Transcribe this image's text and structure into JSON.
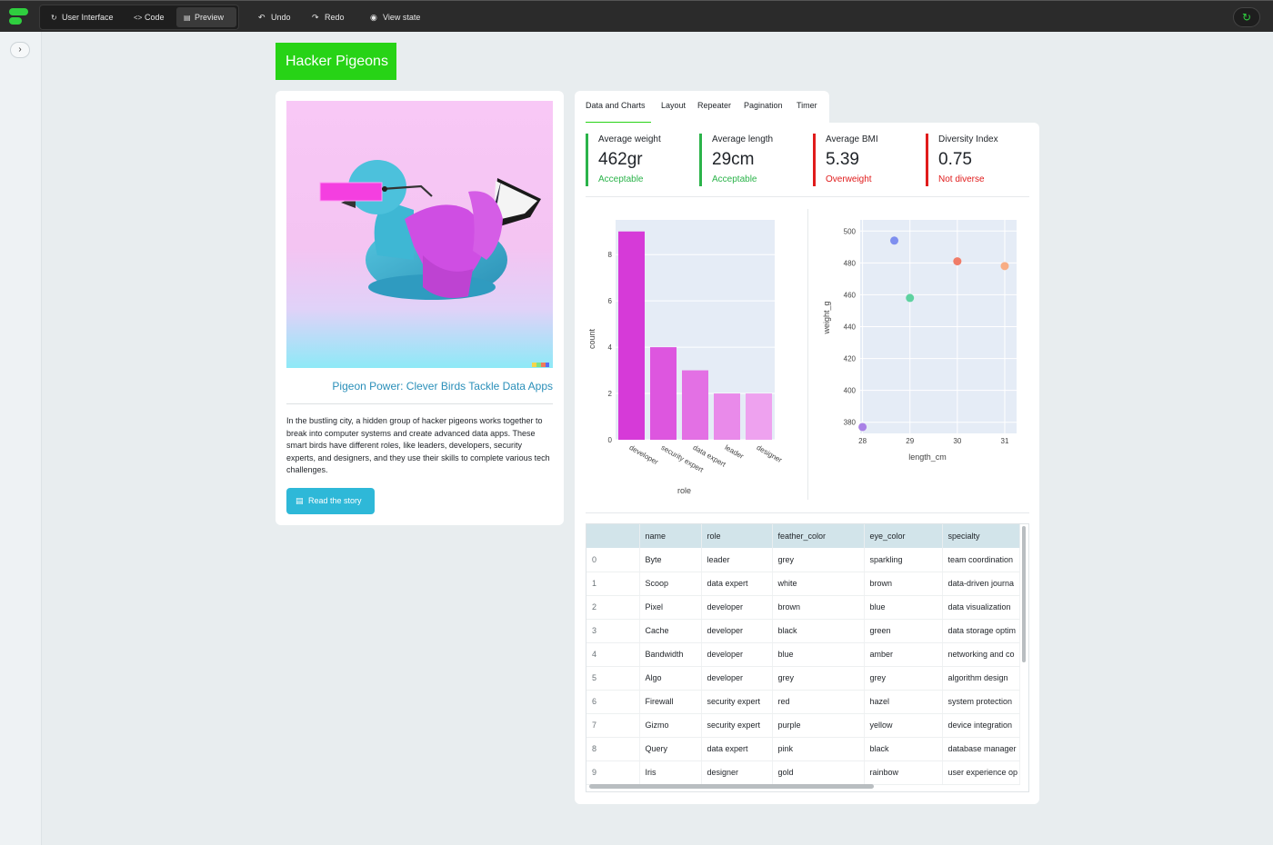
{
  "toolbar": {
    "modes": [
      {
        "label": "User Interface",
        "icon": "reload-icon"
      },
      {
        "label": "Code",
        "icon": "code-icon"
      },
      {
        "label": "Preview",
        "icon": "preview-icon"
      }
    ],
    "undo_label": "Undo",
    "redo_label": "Redo",
    "view_state_label": "View state"
  },
  "app_title": "Hacker Pigeons",
  "story": {
    "title": "Pigeon Power: Clever Birds Tackle Data Apps",
    "text": "In the bustling city, a hidden group of hacker pigeons works together to break into computer systems and create advanced data apps. These smart birds have different roles, like leaders, developers, security experts, and designers, and they use their skills to complete various tech challenges.",
    "button_label": "Read the story"
  },
  "tabs": [
    "Data and Charts",
    "Layout",
    "Repeater",
    "Pagination",
    "Timer"
  ],
  "kpis": [
    {
      "label": "Average weight",
      "value": "462gr",
      "status": "Acceptable",
      "color": "#2bb34a"
    },
    {
      "label": "Average length",
      "value": "29cm",
      "status": "Acceptable",
      "color": "#2bb34a"
    },
    {
      "label": "Average BMI",
      "value": "5.39",
      "status": "Overweight",
      "color": "#e01b1b"
    },
    {
      "label": "Diversity Index",
      "value": "0.75",
      "status": "Not diverse",
      "color": "#e01b1b"
    }
  ],
  "chart_data": [
    {
      "type": "bar",
      "categories": [
        "developer",
        "security expert",
        "data expert",
        "leader",
        "designer"
      ],
      "values": [
        9,
        4,
        3,
        2,
        2
      ],
      "colors": [
        "#d63ad8",
        "#dd56df",
        "#e370e4",
        "#e98aea",
        "#eea2ef"
      ],
      "xlabel": "role",
      "ylabel": "count",
      "yticks": [
        0,
        2,
        4,
        6,
        8
      ],
      "ylim": [
        0,
        9.5
      ]
    },
    {
      "type": "scatter",
      "points": [
        {
          "x": 28,
          "y": 377,
          "color": "#a981e6"
        },
        {
          "x": 28.67,
          "y": 494,
          "color": "#7e8fef"
        },
        {
          "x": 29,
          "y": 458,
          "color": "#5ed2a0"
        },
        {
          "x": 30,
          "y": 481,
          "color": "#f07c68"
        },
        {
          "x": 31,
          "y": 478,
          "color": "#f8ad84"
        }
      ],
      "xlabel": "length_cm",
      "ylabel": "weight_g",
      "xticks": [
        28,
        29,
        30,
        31
      ],
      "yticks": [
        380,
        400,
        420,
        440,
        460,
        480,
        500
      ],
      "xlim": [
        27.95,
        31.25
      ],
      "ylim": [
        373,
        507
      ]
    }
  ],
  "table": {
    "columns": [
      "",
      "name",
      "role",
      "feather_color",
      "eye_color",
      "specialty"
    ],
    "rows": [
      [
        "0",
        "Byte",
        "leader",
        "grey",
        "sparkling",
        "team coordination"
      ],
      [
        "1",
        "Scoop",
        "data expert",
        "white",
        "brown",
        "data-driven journa"
      ],
      [
        "2",
        "Pixel",
        "developer",
        "brown",
        "blue",
        "data visualization"
      ],
      [
        "3",
        "Cache",
        "developer",
        "black",
        "green",
        "data storage optim"
      ],
      [
        "4",
        "Bandwidth",
        "developer",
        "blue",
        "amber",
        "networking and co"
      ],
      [
        "5",
        "Algo",
        "developer",
        "grey",
        "grey",
        "algorithm design"
      ],
      [
        "6",
        "Firewall",
        "security expert",
        "red",
        "hazel",
        "system protection"
      ],
      [
        "7",
        "Gizmo",
        "security expert",
        "purple",
        "yellow",
        "device integration"
      ],
      [
        "8",
        "Query",
        "data expert",
        "pink",
        "black",
        "database manager"
      ],
      [
        "9",
        "Iris",
        "designer",
        "gold",
        "rainbow",
        "user experience op"
      ]
    ]
  }
}
